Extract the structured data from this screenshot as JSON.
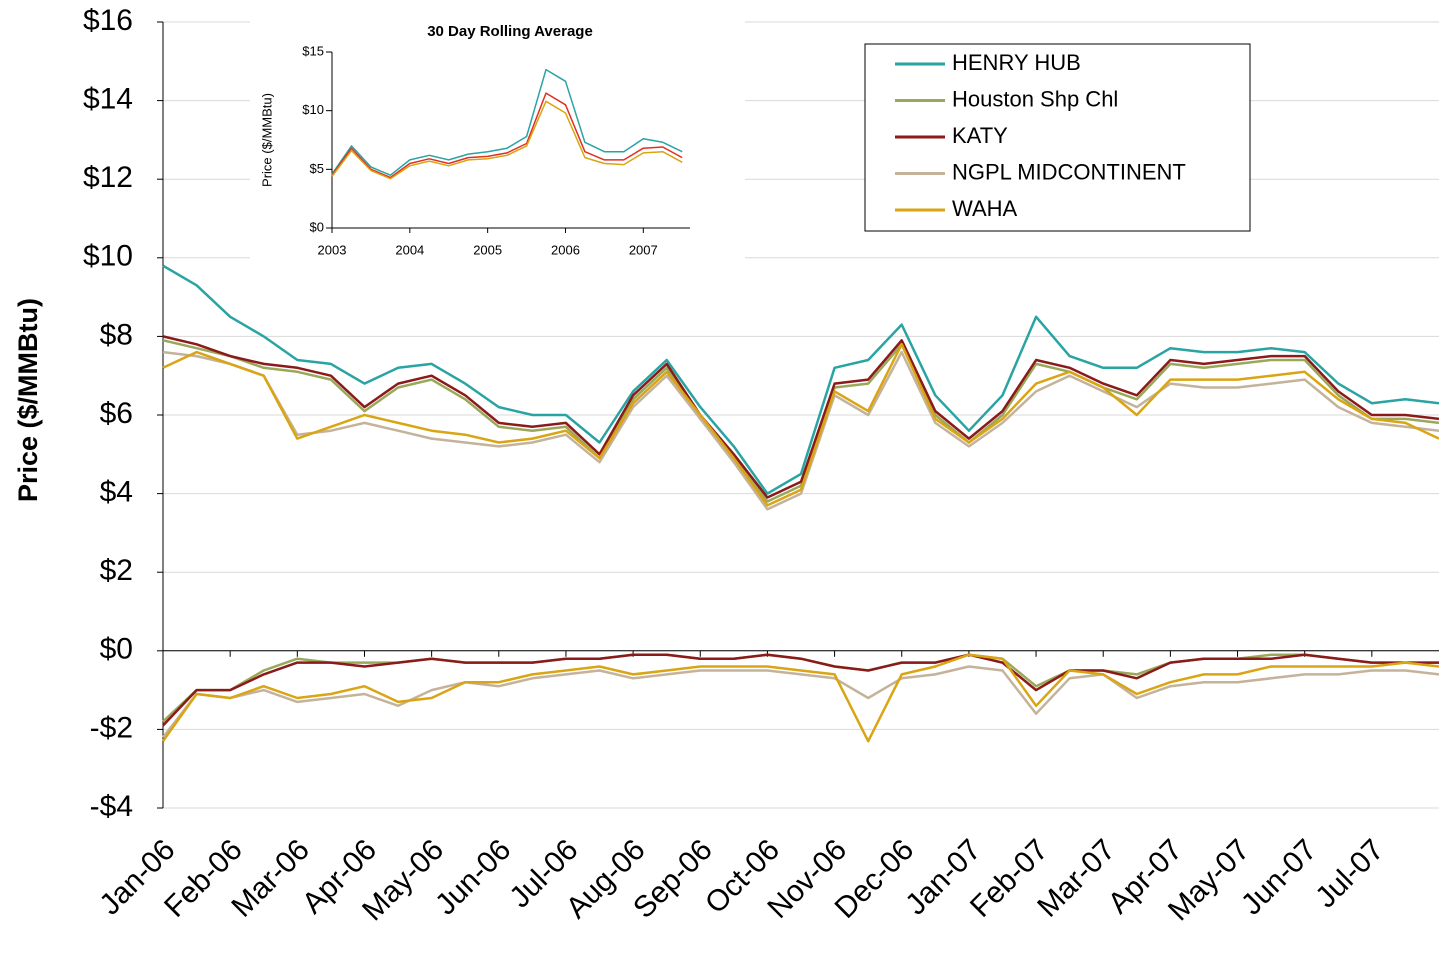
{
  "chart_data": [
    {
      "type": "line",
      "y_label": "Price ($/MMBtu)",
      "x": [
        0,
        0.5,
        1,
        1.5,
        2,
        2.5,
        3,
        3.5,
        4,
        4.5,
        5,
        5.5,
        6,
        6.5,
        7,
        7.5,
        8,
        8.5,
        9,
        9.5,
        10,
        10.5,
        11,
        11.5,
        12,
        12.5,
        13,
        13.5,
        14,
        14.5,
        15,
        15.5,
        16,
        16.5,
        17,
        17.5,
        18,
        18.5,
        19
      ],
      "xlim": [
        0,
        19
      ],
      "xticks": [
        {
          "value": 0,
          "label": "Jan-06"
        },
        {
          "value": 1,
          "label": "Feb-06"
        },
        {
          "value": 2,
          "label": "Mar-06"
        },
        {
          "value": 3,
          "label": "Apr-06"
        },
        {
          "value": 4,
          "label": "May-06"
        },
        {
          "value": 5,
          "label": "Jun-06"
        },
        {
          "value": 6,
          "label": "Jul-06"
        },
        {
          "value": 7,
          "label": "Aug-06"
        },
        {
          "value": 8,
          "label": "Sep-06"
        },
        {
          "value": 9,
          "label": "Oct-06"
        },
        {
          "value": 10,
          "label": "Nov-06"
        },
        {
          "value": 11,
          "label": "Dec-06"
        },
        {
          "value": 12,
          "label": "Jan-07"
        },
        {
          "value": 13,
          "label": "Feb-07"
        },
        {
          "value": 14,
          "label": "Mar-07"
        },
        {
          "value": 15,
          "label": "Apr-07"
        },
        {
          "value": 16,
          "label": "May-07"
        },
        {
          "value": 17,
          "label": "Jun-07"
        },
        {
          "value": 18,
          "label": "Jul-07"
        }
      ],
      "ylim": [
        -4,
        16
      ],
      "yticks": [
        {
          "value": -4,
          "label": "-$4"
        },
        {
          "value": -2,
          "label": "-$2"
        },
        {
          "value": 0,
          "label": "$0"
        },
        {
          "value": 2,
          "label": "$2"
        },
        {
          "value": 4,
          "label": "$4"
        },
        {
          "value": 6,
          "label": "$6"
        },
        {
          "value": 8,
          "label": "$8"
        },
        {
          "value": 10,
          "label": "$10"
        },
        {
          "value": 12,
          "label": "$12"
        },
        {
          "value": 14,
          "label": "$14"
        },
        {
          "value": 16,
          "label": "$16"
        }
      ],
      "grid": true,
      "legend": "top-right",
      "series": [
        {
          "name": "HENRY HUB",
          "color": "#2aa3a3",
          "values": [
            9.8,
            9.3,
            8.5,
            8.0,
            7.4,
            7.3,
            6.8,
            7.2,
            7.3,
            6.8,
            6.2,
            6.0,
            6.0,
            5.3,
            6.6,
            7.4,
            6.2,
            5.2,
            4.0,
            4.5,
            7.2,
            7.4,
            8.3,
            6.5,
            5.6,
            6.5,
            8.5,
            7.5,
            7.2,
            7.2,
            7.7,
            7.6,
            7.6,
            7.7,
            7.6,
            6.8,
            6.3,
            6.4,
            6.3
          ]
        },
        {
          "name": "Houston Shp Chl",
          "color": "#9aa85a",
          "values": [
            7.9,
            7.7,
            7.5,
            7.2,
            7.1,
            6.9,
            6.1,
            6.7,
            6.9,
            6.4,
            5.7,
            5.6,
            5.7,
            4.9,
            6.4,
            7.2,
            5.9,
            4.9,
            3.8,
            4.2,
            6.7,
            6.8,
            7.8,
            6.0,
            5.3,
            6.0,
            7.3,
            7.1,
            6.7,
            6.4,
            7.3,
            7.2,
            7.3,
            7.4,
            7.4,
            6.5,
            5.9,
            5.9,
            5.8
          ]
        },
        {
          "name": "KATY",
          "color": "#8b1a1a",
          "values": [
            8.0,
            7.8,
            7.5,
            7.3,
            7.2,
            7.0,
            6.2,
            6.8,
            7.0,
            6.5,
            5.8,
            5.7,
            5.8,
            5.0,
            6.5,
            7.3,
            6.0,
            5.0,
            3.9,
            4.3,
            6.8,
            6.9,
            7.9,
            6.1,
            5.4,
            6.1,
            7.4,
            7.2,
            6.8,
            6.5,
            7.4,
            7.3,
            7.4,
            7.5,
            7.5,
            6.6,
            6.0,
            6.0,
            5.9
          ]
        },
        {
          "name": "NGPL MIDCONTINENT",
          "color": "#c4b39a",
          "values": [
            7.6,
            7.5,
            7.3,
            7.0,
            5.5,
            5.6,
            5.8,
            5.6,
            5.4,
            5.3,
            5.2,
            5.3,
            5.5,
            4.8,
            6.2,
            7.0,
            5.9,
            4.8,
            3.6,
            4.0,
            6.5,
            6.0,
            7.6,
            5.8,
            5.2,
            5.8,
            6.6,
            7.0,
            6.6,
            6.2,
            6.8,
            6.7,
            6.7,
            6.8,
            6.9,
            6.2,
            5.8,
            5.7,
            5.6
          ]
        },
        {
          "name": "WAHA",
          "color": "#d9a514",
          "values": [
            7.2,
            7.6,
            7.3,
            7.0,
            5.4,
            5.7,
            6.0,
            5.8,
            5.6,
            5.5,
            5.3,
            5.4,
            5.6,
            4.9,
            6.3,
            7.1,
            6.0,
            4.9,
            3.7,
            4.1,
            6.6,
            6.1,
            7.8,
            5.9,
            5.3,
            5.9,
            6.8,
            7.1,
            6.7,
            6.0,
            6.9,
            6.9,
            6.9,
            7.0,
            7.1,
            6.4,
            5.9,
            5.8,
            5.4
          ]
        },
        {
          "color": "#c4b39a",
          "values": [
            -2.2,
            -1.1,
            -1.2,
            -1.0,
            -1.3,
            -1.2,
            -1.1,
            -1.4,
            -1.0,
            -0.8,
            -0.9,
            -0.7,
            -0.6,
            -0.5,
            -0.7,
            -0.6,
            -0.5,
            -0.5,
            -0.5,
            -0.6,
            -0.7,
            -1.2,
            -0.7,
            -0.6,
            -0.4,
            -0.5,
            -1.6,
            -0.7,
            -0.6,
            -1.2,
            -0.9,
            -0.8,
            -0.8,
            -0.7,
            -0.6,
            -0.6,
            -0.5,
            -0.5,
            -0.6
          ]
        },
        {
          "color": "#9aa85a",
          "values": [
            -1.8,
            -1.0,
            -1.0,
            -0.5,
            -0.2,
            -0.3,
            -0.3,
            -0.3,
            -0.2,
            -0.3,
            -0.3,
            -0.3,
            -0.2,
            -0.2,
            -0.1,
            -0.1,
            -0.2,
            -0.2,
            -0.1,
            -0.2,
            -0.4,
            -0.5,
            -0.3,
            -0.3,
            -0.1,
            -0.2,
            -0.9,
            -0.5,
            -0.5,
            -0.6,
            -0.3,
            -0.2,
            -0.2,
            -0.1,
            -0.1,
            -0.2,
            -0.3,
            -0.3,
            -0.3
          ]
        },
        {
          "color": "#8b1a1a",
          "values": [
            -1.9,
            -1.0,
            -1.0,
            -0.6,
            -0.3,
            -0.3,
            -0.4,
            -0.3,
            -0.2,
            -0.3,
            -0.3,
            -0.3,
            -0.2,
            -0.2,
            -0.1,
            -0.1,
            -0.2,
            -0.2,
            -0.1,
            -0.2,
            -0.4,
            -0.5,
            -0.3,
            -0.3,
            -0.1,
            -0.3,
            -1.0,
            -0.5,
            -0.5,
            -0.7,
            -0.3,
            -0.2,
            -0.2,
            -0.2,
            -0.1,
            -0.2,
            -0.3,
            -0.3,
            -0.3
          ]
        },
        {
          "color": "#d9a514",
          "values": [
            -2.3,
            -1.1,
            -1.2,
            -0.9,
            -1.2,
            -1.1,
            -0.9,
            -1.3,
            -1.2,
            -0.8,
            -0.8,
            -0.6,
            -0.5,
            -0.4,
            -0.6,
            -0.5,
            -0.4,
            -0.4,
            -0.4,
            -0.5,
            -0.6,
            -2.3,
            -0.6,
            -0.4,
            -0.1,
            -0.2,
            -1.4,
            -0.5,
            -0.6,
            -1.1,
            -0.8,
            -0.6,
            -0.6,
            -0.4,
            -0.4,
            -0.4,
            -0.4,
            -0.3,
            -0.4
          ]
        }
      ]
    },
    {
      "type": "line",
      "title": "30 Day Rolling Average",
      "y_label": "Price ($/MMBtu)",
      "x": [
        2003,
        2003.25,
        2003.5,
        2003.75,
        2004,
        2004.25,
        2004.5,
        2004.75,
        2005,
        2005.25,
        2005.5,
        2005.75,
        2006,
        2006.25,
        2006.5,
        2006.75,
        2007,
        2007.25,
        2007.5
      ],
      "xlim": [
        2003,
        2007.6
      ],
      "xticks": [
        2003,
        2004,
        2005,
        2006,
        2007
      ],
      "ylim": [
        0,
        15
      ],
      "yticks": [
        {
          "value": 0,
          "label": "$0"
        },
        {
          "value": 5,
          "label": "$5"
        },
        {
          "value": 10,
          "label": "$10"
        },
        {
          "value": 15,
          "label": "$15"
        }
      ],
      "grid": false,
      "series": [
        {
          "color": "#2aa3a3",
          "values": [
            4.6,
            7.0,
            5.2,
            4.5,
            5.8,
            6.2,
            5.8,
            6.3,
            6.5,
            6.8,
            7.8,
            13.5,
            12.5,
            7.3,
            6.5,
            6.5,
            7.6,
            7.3,
            6.5
          ]
        },
        {
          "color": "#e03020",
          "values": [
            4.5,
            6.8,
            5.0,
            4.3,
            5.5,
            5.9,
            5.5,
            6.0,
            6.1,
            6.4,
            7.2,
            11.5,
            10.5,
            6.5,
            5.8,
            5.8,
            6.8,
            6.9,
            6.0
          ]
        },
        {
          "color": "#d9a514",
          "values": [
            4.4,
            6.6,
            4.9,
            4.2,
            5.3,
            5.7,
            5.3,
            5.8,
            5.9,
            6.2,
            7.0,
            10.8,
            9.8,
            6.0,
            5.5,
            5.4,
            6.4,
            6.5,
            5.6
          ]
        }
      ]
    }
  ]
}
